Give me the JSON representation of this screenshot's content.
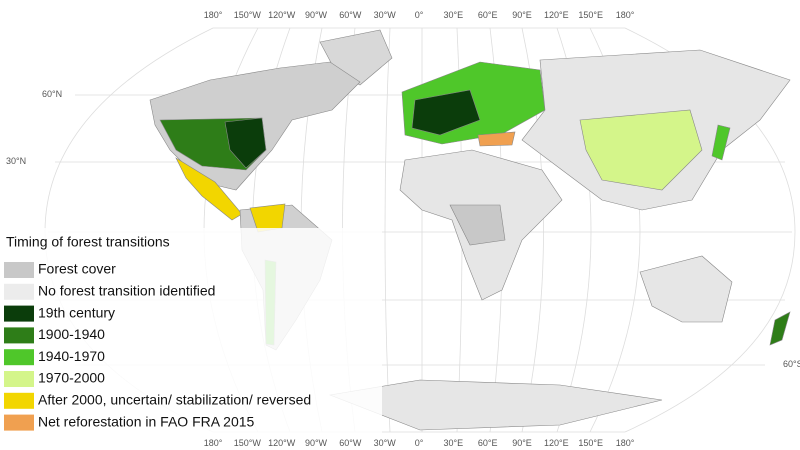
{
  "longitude_labels": [
    "180°",
    "150°W",
    "120°W",
    "90°W",
    "60°W",
    "30°W",
    "0°",
    "30°E",
    "60°E",
    "90°E",
    "120°E",
    "150°E",
    "180°"
  ],
  "latitude_labels": {
    "left": [
      "60°N",
      "30°N"
    ],
    "right": [
      "60°S"
    ]
  },
  "legend": {
    "title": "Timing of forest transitions",
    "items": [
      {
        "label": "Forest cover",
        "color": "#c8c8c8"
      },
      {
        "label": "No forest transition identified",
        "color": "#ececec"
      },
      {
        "label": "19th century",
        "color": "#0b3d0b"
      },
      {
        "label": "1900-1940",
        "color": "#2e7d18"
      },
      {
        "label": "1940-1970",
        "color": "#4fc72a"
      },
      {
        "label": "1970-2000",
        "color": "#d4f58a"
      },
      {
        "label": "After 2000, uncertain/ stabilization/ reversed",
        "color": "#f2d600"
      },
      {
        "label": "Net reforestation in FAO FRA 2015",
        "color": "#f0a050"
      }
    ]
  }
}
